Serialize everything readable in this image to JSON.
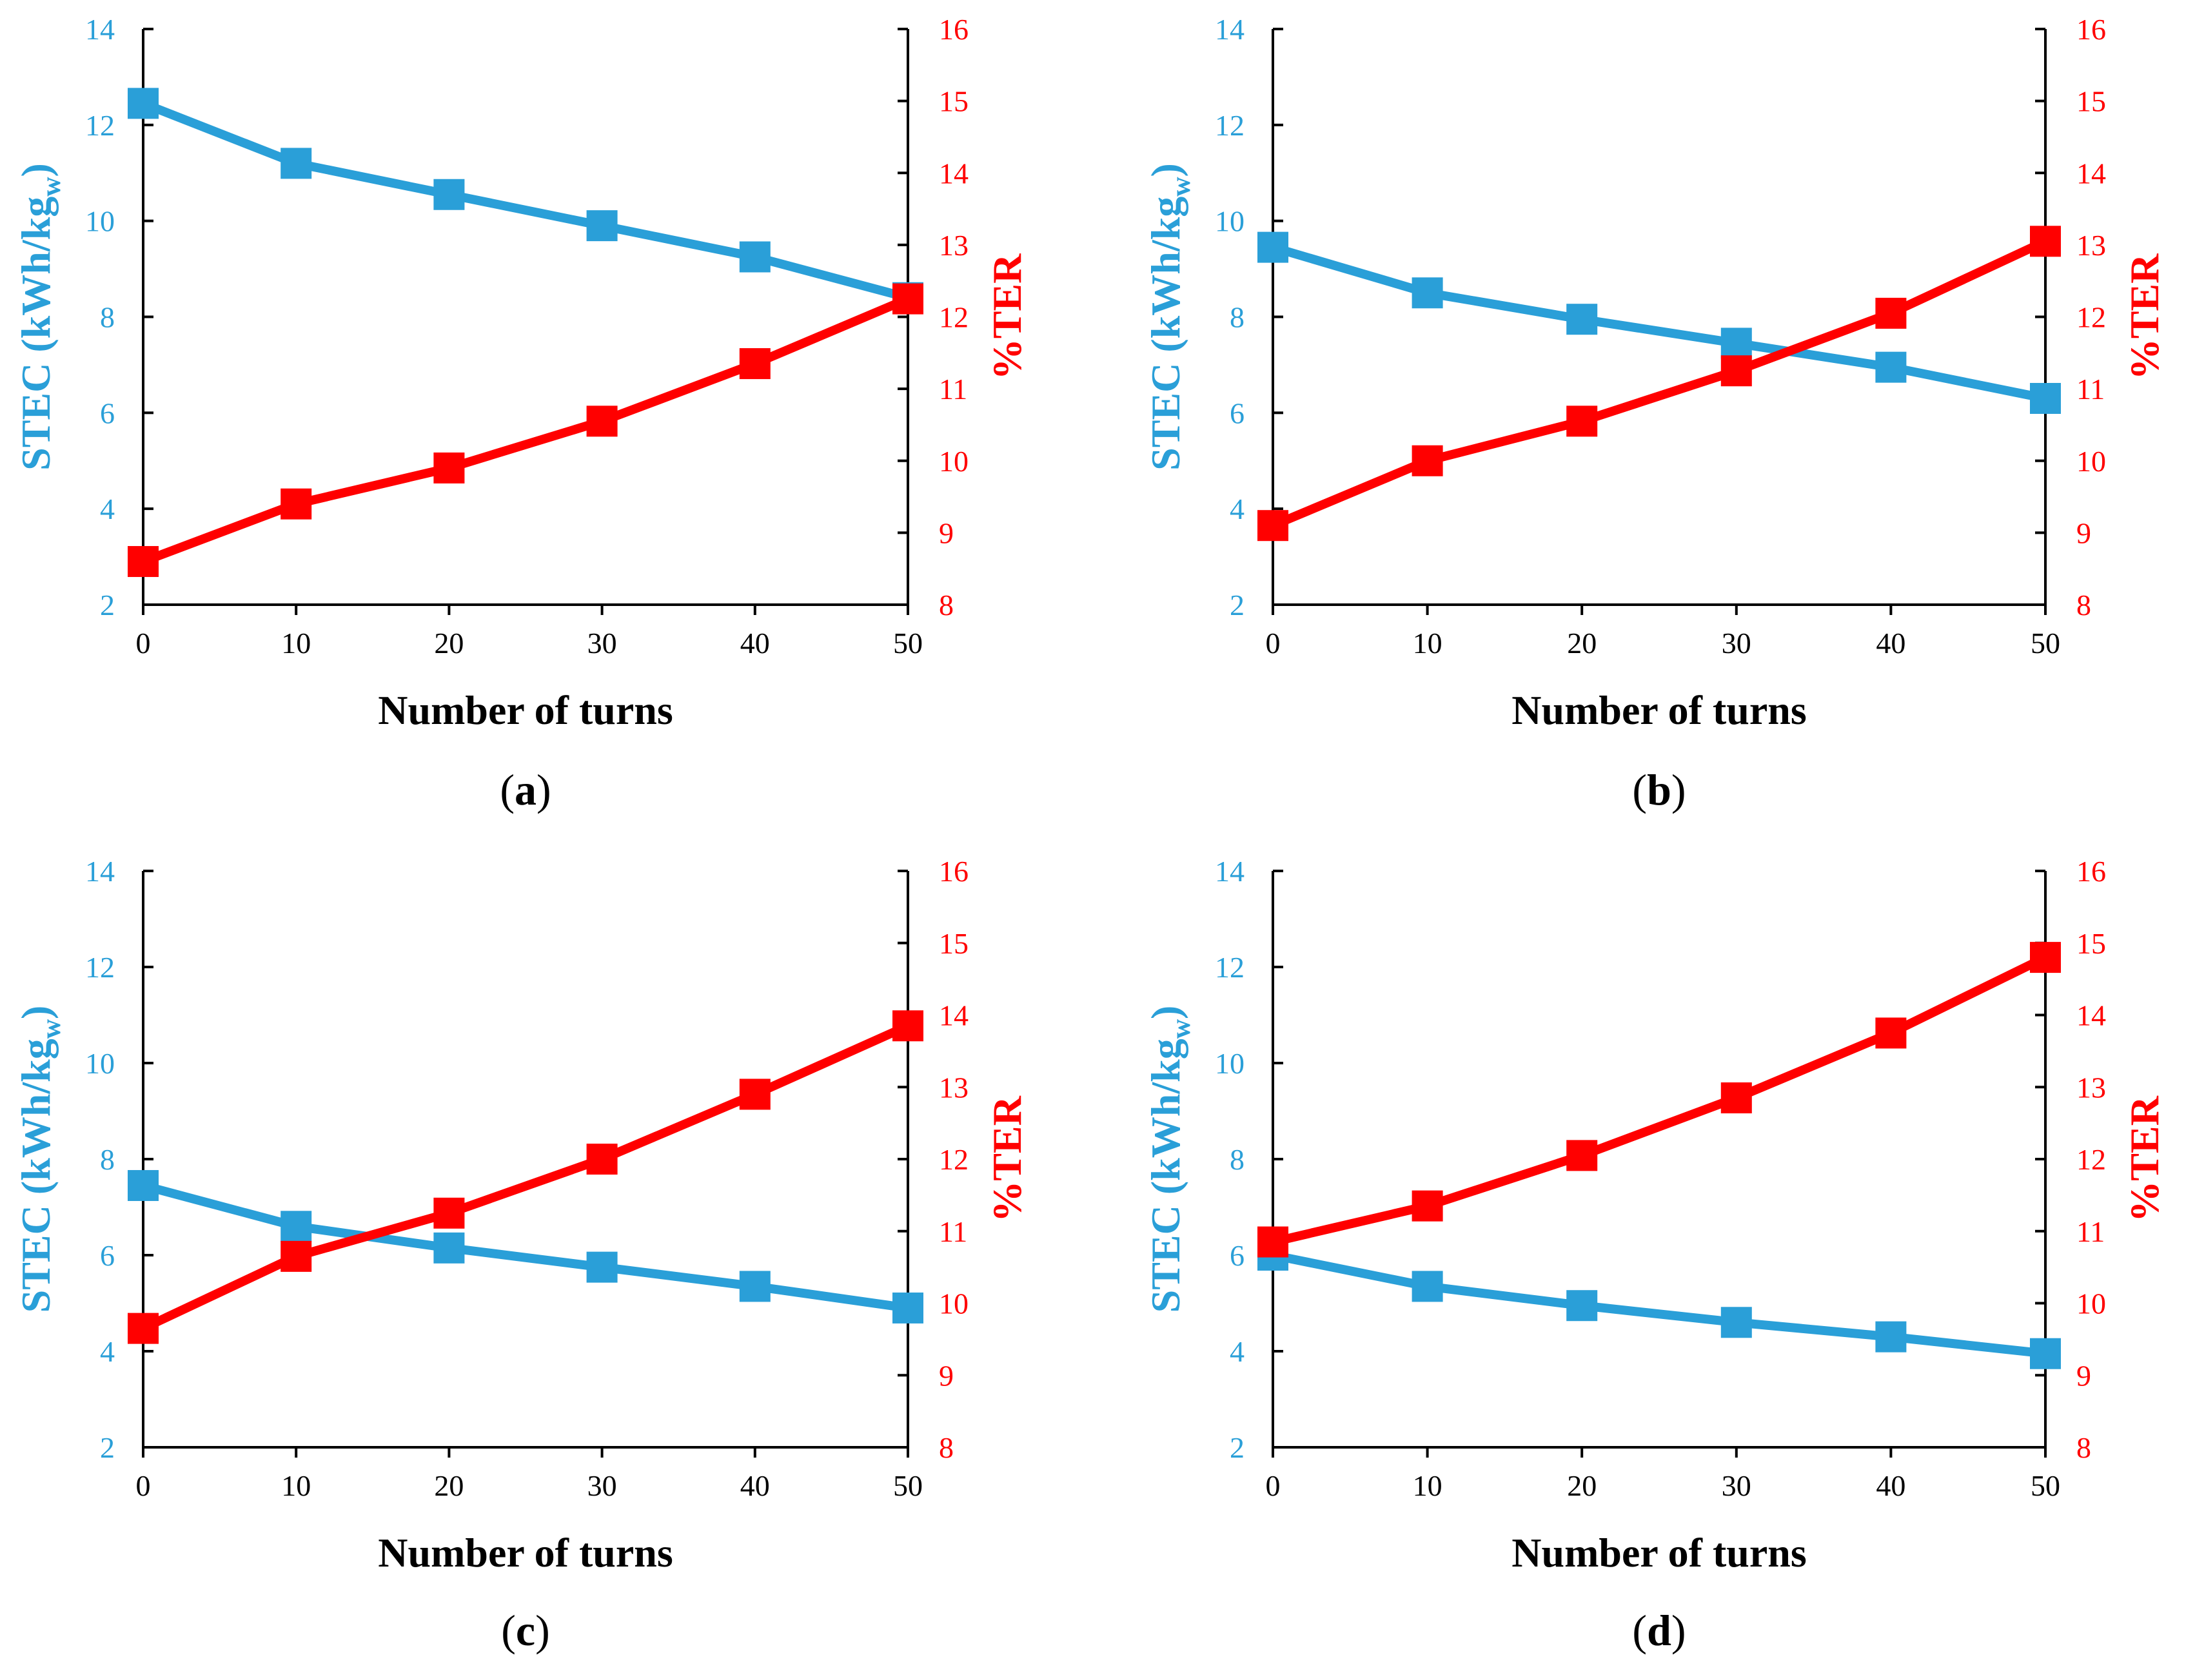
{
  "colors": {
    "stec": "#2a9fd8",
    "ter": "#ff0000",
    "axis": "#000000"
  },
  "chart_data": [
    {
      "type": "line",
      "panel_label": "a",
      "caption_open": "(",
      "caption_close": ")",
      "xlabel": "Number of turns",
      "ylabel_left": {
        "main": "STEC (kWh/kg",
        "sub1": "w",
        "close": ")"
      },
      "ylabel_right": "%TER",
      "x": [
        0,
        10,
        20,
        30,
        40,
        50
      ],
      "x_ticks": [
        "0",
        "10",
        "20",
        "30",
        "40",
        "50"
      ],
      "xlim": [
        0,
        50
      ],
      "ylim_left": [
        2,
        14
      ],
      "ylim_right": [
        8,
        16
      ],
      "y_ticks_left": [
        "2",
        "4",
        "6",
        "8",
        "10",
        "12",
        "14"
      ],
      "y_ticks_right": [
        "8",
        "9",
        "10",
        "11",
        "12",
        "13",
        "14",
        "15",
        "16"
      ],
      "series": [
        {
          "name": "STEC",
          "axis": "left",
          "values": [
            12.45,
            11.2,
            10.55,
            9.9,
            9.25,
            8.4
          ]
        },
        {
          "name": "%TER",
          "axis": "right",
          "values": [
            8.6,
            9.4,
            9.9,
            10.55,
            11.35,
            12.25
          ]
        }
      ]
    },
    {
      "type": "line",
      "panel_label": "b",
      "caption_open": "(",
      "caption_close": ")",
      "xlabel": "Number of turns",
      "ylabel_left": {
        "main": "STEC (kWh/kg",
        "sub1": "w",
        "close": ")"
      },
      "ylabel_right": "%TER",
      "x": [
        0,
        10,
        20,
        30,
        40,
        50
      ],
      "x_ticks": [
        "0",
        "10",
        "20",
        "30",
        "40",
        "50"
      ],
      "xlim": [
        0,
        50
      ],
      "ylim_left": [
        2,
        14
      ],
      "ylim_right": [
        8,
        16
      ],
      "y_ticks_left": [
        "2",
        "4",
        "6",
        "8",
        "10",
        "12",
        "14"
      ],
      "y_ticks_right": [
        "8",
        "9",
        "10",
        "11",
        "12",
        "13",
        "14",
        "15",
        "16"
      ],
      "series": [
        {
          "name": "STEC",
          "axis": "left",
          "values": [
            9.45,
            8.5,
            7.95,
            7.45,
            6.95,
            6.3
          ]
        },
        {
          "name": "%TER",
          "axis": "right",
          "values": [
            9.1,
            10.0,
            10.55,
            11.25,
            12.05,
            13.05
          ]
        }
      ]
    },
    {
      "type": "line",
      "panel_label": "c",
      "caption_open": "(",
      "caption_close": ")",
      "xlabel": "Number of turns",
      "ylabel_left": {
        "main": "STEC (kWh/kg",
        "sub1": "w",
        "close": ")"
      },
      "ylabel_right": "%TER",
      "x": [
        0,
        10,
        20,
        30,
        40,
        50
      ],
      "x_ticks": [
        "0",
        "10",
        "20",
        "30",
        "40",
        "50"
      ],
      "xlim": [
        0,
        50
      ],
      "ylim_left": [
        2,
        14
      ],
      "ylim_right": [
        8,
        16
      ],
      "y_ticks_left": [
        "2",
        "4",
        "6",
        "8",
        "10",
        "12",
        "14"
      ],
      "y_ticks_right": [
        "8",
        "9",
        "10",
        "11",
        "12",
        "13",
        "14",
        "15",
        "16"
      ],
      "series": [
        {
          "name": "STEC",
          "axis": "left",
          "values": [
            7.45,
            6.6,
            6.15,
            5.75,
            5.35,
            4.9
          ]
        },
        {
          "name": "%TER",
          "axis": "right",
          "values": [
            9.65,
            10.65,
            11.25,
            12.0,
            12.9,
            13.85
          ]
        }
      ]
    },
    {
      "type": "line",
      "panel_label": "d",
      "caption_open": "(",
      "caption_close": ")",
      "xlabel": "Number of turns",
      "ylabel_left": {
        "main": "STEC (kWh/kg",
        "sub1": "w",
        "close": ")"
      },
      "ylabel_right": "%TER",
      "x": [
        0,
        10,
        20,
        30,
        40,
        50
      ],
      "x_ticks": [
        "0",
        "10",
        "20",
        "30",
        "40",
        "50"
      ],
      "xlim": [
        0,
        50
      ],
      "ylim_left": [
        2,
        14
      ],
      "ylim_right": [
        8,
        16
      ],
      "y_ticks_left": [
        "2",
        "4",
        "6",
        "8",
        "10",
        "12",
        "14"
      ],
      "y_ticks_right": [
        "8",
        "9",
        "10",
        "11",
        "12",
        "13",
        "14",
        "15",
        "16"
      ],
      "series": [
        {
          "name": "STEC",
          "axis": "left",
          "values": [
            6.0,
            5.35,
            4.95,
            4.6,
            4.3,
            3.95
          ]
        },
        {
          "name": "%TER",
          "axis": "right",
          "values": [
            10.85,
            11.35,
            12.05,
            12.85,
            13.75,
            14.8
          ]
        }
      ]
    }
  ]
}
